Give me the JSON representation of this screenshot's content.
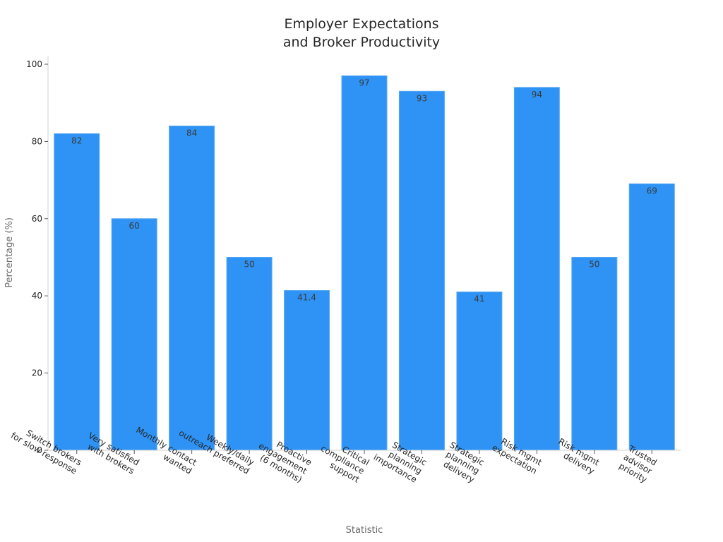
{
  "chart_data": {
    "type": "bar",
    "title": [
      "Employer Expectations",
      "and Broker Productivity"
    ],
    "xlabel": "Statistic",
    "ylabel": "Percentage (%)",
    "ylim": [
      0,
      102
    ],
    "yticks": [
      0,
      20,
      40,
      60,
      80,
      100
    ],
    "grid": false,
    "categories": [
      [
        "Switch brokers",
        "for slow response"
      ],
      [
        "Very satisfied",
        "with brokers"
      ],
      [
        "Monthly contact",
        "wanted"
      ],
      [
        "Weekly/daily",
        "outreach preferred"
      ],
      [
        "Proactive",
        "engagement",
        "(6 months)"
      ],
      [
        "Critical",
        "compliance",
        "support"
      ],
      [
        "Strategic",
        "planning",
        "importance"
      ],
      [
        "Strategic",
        "planning",
        "delivery"
      ],
      [
        "Risk mgmt",
        "expectation"
      ],
      [
        "Risk mgmt",
        "delivery"
      ],
      [
        "Trusted",
        "advisor",
        "priority"
      ]
    ],
    "values": [
      82,
      60,
      84,
      50,
      41.4,
      97,
      93,
      41,
      94,
      50,
      69
    ],
    "bar_color": "#2e93f5"
  }
}
